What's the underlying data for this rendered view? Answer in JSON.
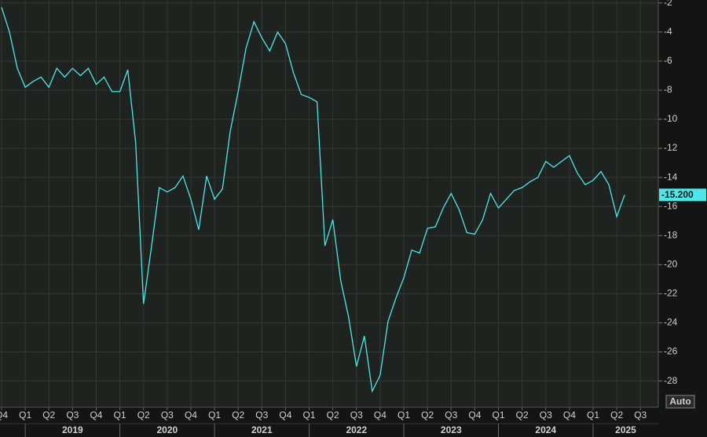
{
  "chart_data": {
    "type": "line",
    "categories": [
      "Q4",
      null,
      null,
      "Q1",
      null,
      null,
      "Q2",
      null,
      null,
      "Q3",
      null,
      null,
      "Q4",
      null,
      null,
      "Q1",
      null,
      null,
      "Q2",
      null,
      null,
      "Q3",
      null,
      null,
      "Q4",
      null,
      null,
      "Q1",
      null,
      null,
      "Q2",
      null,
      null,
      "Q3",
      null,
      null,
      "Q4",
      null,
      null,
      "Q1",
      null,
      null,
      "Q2",
      null,
      null,
      "Q3",
      null,
      null,
      "Q4",
      null,
      null,
      "Q1",
      null,
      null,
      "Q2",
      null,
      null,
      "Q3",
      null,
      null,
      "Q4",
      null,
      null,
      "Q1",
      null,
      null,
      "Q2",
      null,
      null,
      "Q3",
      null,
      null,
      "Q4",
      null,
      null,
      "Q1",
      null,
      null,
      "Q2",
      null,
      null,
      "Q3",
      null,
      null
    ],
    "years": [
      "2019",
      "2020",
      "2021",
      "2022",
      "2023",
      "2024",
      "2025"
    ],
    "values": [
      -2.3,
      -4.0,
      -6.5,
      -7.8,
      -7.4,
      -7.1,
      -7.8,
      -6.5,
      -7.1,
      -6.5,
      -7.0,
      -6.5,
      -7.6,
      -7.1,
      -8.1,
      -8.1,
      -6.6,
      -11.6,
      -22.7,
      -18.8,
      -14.7,
      -15.0,
      -14.7,
      -13.9,
      -15.5,
      -17.6,
      -13.9,
      -15.5,
      -14.8,
      -10.8,
      -8.1,
      -5.1,
      -3.3,
      -4.4,
      -5.3,
      -4.0,
      -4.8,
      -6.8,
      -8.3,
      -8.5,
      -8.8,
      -18.7,
      -16.9,
      -21.1,
      -23.6,
      -27.0,
      -24.9,
      -28.7,
      -27.6,
      -23.9,
      -22.3,
      -20.9,
      -19.0,
      -19.2,
      -17.5,
      -17.4,
      -16.1,
      -15.1,
      -16.2,
      -17.8,
      -17.9,
      -16.9,
      -15.1,
      -16.1,
      -15.5,
      -14.9,
      -14.7,
      -14.3,
      -14.0,
      -12.9,
      -13.3,
      -12.9,
      -12.5,
      -13.7,
      -14.5,
      -14.2,
      -13.6,
      -14.5,
      -16.7,
      -15.2,
      null,
      null,
      null,
      null
    ],
    "value_labels": [
      null,
      null,
      null,
      null,
      null,
      null,
      null,
      null,
      null,
      null,
      null,
      null,
      null,
      null,
      null,
      null,
      null,
      null,
      null,
      null,
      null,
      null,
      null,
      null,
      null,
      null,
      null,
      null,
      null,
      null,
      null,
      null,
      null,
      null,
      null,
      null,
      null,
      null,
      null,
      null,
      null,
      null,
      null,
      null,
      null,
      null,
      null,
      null,
      null,
      null,
      null,
      null,
      null,
      null,
      null,
      null,
      null,
      null,
      null,
      null,
      null,
      null,
      null,
      null,
      null,
      null,
      null,
      null,
      null,
      null,
      null,
      null,
      null,
      null,
      null,
      null,
      null,
      null,
      null,
      "-15.200",
      null,
      null,
      null,
      null
    ],
    "color": "#4ee6e6",
    "ylim": [
      -29.8,
      -1.8
    ],
    "yticks": [
      -28,
      -26,
      -24,
      -22,
      -20,
      -18,
      -16,
      -14,
      -12,
      -10,
      -8,
      -6,
      -4,
      -2
    ],
    "grid": true
  },
  "controls": {
    "scale_button": "Auto"
  }
}
